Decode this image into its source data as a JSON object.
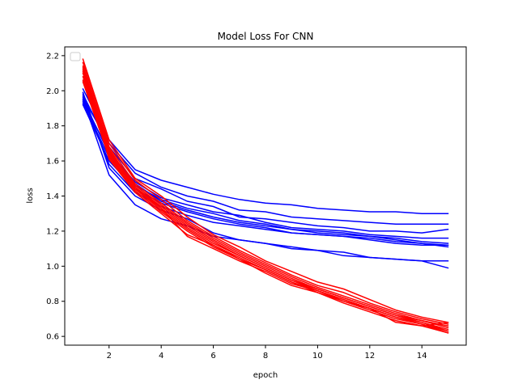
{
  "chart_data": {
    "type": "line",
    "title": "Model Loss For CNN",
    "xlabel": "epoch",
    "ylabel": "loss",
    "xlim": [
      0.3,
      15.7
    ],
    "ylim": [
      0.55,
      2.25
    ],
    "xticks": [
      2,
      4,
      6,
      8,
      10,
      12,
      14
    ],
    "yticks": [
      0.6,
      0.8,
      1.0,
      1.2,
      1.4,
      1.6,
      1.8,
      2.0,
      2.2
    ],
    "ytick_labels": [
      "0.6",
      "0.8",
      "1.0",
      "1.2",
      "1.4",
      "1.6",
      "1.8",
      "2.0",
      "2.2"
    ],
    "grid": false,
    "legend": {
      "placement": "top-left",
      "entries": []
    },
    "x": [
      1,
      2,
      3,
      4,
      5,
      6,
      7,
      8,
      9,
      10,
      11,
      12,
      13,
      14,
      15
    ],
    "series_groups": [
      {
        "color": "#0000ff",
        "series": [
          {
            "values": [
              2.01,
              1.72,
              1.55,
              1.49,
              1.45,
              1.41,
              1.38,
              1.36,
              1.35,
              1.33,
              1.32,
              1.31,
              1.31,
              1.3,
              1.3
            ]
          },
          {
            "values": [
              1.96,
              1.7,
              1.53,
              1.45,
              1.4,
              1.37,
              1.32,
              1.31,
              1.28,
              1.27,
              1.26,
              1.25,
              1.24,
              1.24,
              1.24
            ]
          },
          {
            "values": [
              1.98,
              1.68,
              1.5,
              1.44,
              1.37,
              1.34,
              1.28,
              1.27,
              1.25,
              1.23,
              1.22,
              1.2,
              1.2,
              1.19,
              1.21
            ]
          },
          {
            "values": [
              1.94,
              1.65,
              1.48,
              1.39,
              1.35,
              1.31,
              1.29,
              1.25,
              1.22,
              1.21,
              1.2,
              1.18,
              1.17,
              1.16,
              1.16
            ]
          },
          {
            "values": [
              1.93,
              1.62,
              1.46,
              1.38,
              1.33,
              1.3,
              1.26,
              1.24,
              1.21,
              1.2,
              1.19,
              1.17,
              1.16,
              1.14,
              1.13
            ]
          },
          {
            "values": [
              1.95,
              1.64,
              1.47,
              1.37,
              1.32,
              1.28,
              1.25,
              1.23,
              1.21,
              1.19,
              1.18,
              1.17,
              1.15,
              1.13,
              1.12
            ]
          },
          {
            "values": [
              1.92,
              1.6,
              1.44,
              1.36,
              1.31,
              1.27,
              1.24,
              1.22,
              1.19,
              1.18,
              1.17,
              1.16,
              1.14,
              1.13,
              1.11
            ]
          },
          {
            "values": [
              1.97,
              1.58,
              1.42,
              1.34,
              1.29,
              1.25,
              1.23,
              1.21,
              1.19,
              1.18,
              1.17,
              1.15,
              1.13,
              1.12,
              1.12
            ]
          },
          {
            "values": [
              1.99,
              1.56,
              1.4,
              1.32,
              1.27,
              1.19,
              1.15,
              1.13,
              1.1,
              1.09,
              1.08,
              1.05,
              1.04,
              1.03,
              1.03
            ]
          },
          {
            "values": [
              1.95,
              1.52,
              1.35,
              1.27,
              1.23,
              1.17,
              1.15,
              1.13,
              1.11,
              1.09,
              1.06,
              1.05,
              1.04,
              1.03,
              0.99
            ]
          }
        ]
      },
      {
        "color": "#ff0000",
        "series": [
          {
            "values": [
              2.18,
              1.72,
              1.5,
              1.4,
              1.28,
              1.18,
              1.11,
              1.03,
              0.97,
              0.91,
              0.87,
              0.81,
              0.75,
              0.71,
              0.68
            ]
          },
          {
            "values": [
              2.16,
              1.7,
              1.49,
              1.38,
              1.26,
              1.17,
              1.09,
              1.02,
              0.95,
              0.89,
              0.85,
              0.79,
              0.74,
              0.7,
              0.67
            ]
          },
          {
            "values": [
              2.14,
              1.68,
              1.47,
              1.36,
              1.25,
              1.16,
              1.08,
              1.01,
              0.94,
              0.88,
              0.83,
              0.78,
              0.73,
              0.69,
              0.66
            ]
          },
          {
            "values": [
              2.12,
              1.66,
              1.46,
              1.35,
              1.24,
              1.15,
              1.07,
              1.0,
              0.93,
              0.87,
              0.82,
              0.77,
              0.72,
              0.69,
              0.65
            ]
          },
          {
            "values": [
              2.1,
              1.65,
              1.45,
              1.34,
              1.23,
              1.14,
              1.06,
              0.99,
              0.92,
              0.87,
              0.82,
              0.77,
              0.72,
              0.68,
              0.64
            ]
          },
          {
            "values": [
              2.08,
              1.64,
              1.44,
              1.33,
              1.22,
              1.13,
              1.06,
              0.99,
              0.92,
              0.86,
              0.81,
              0.76,
              0.71,
              0.68,
              0.63
            ]
          },
          {
            "values": [
              2.06,
              1.63,
              1.44,
              1.32,
              1.21,
              1.12,
              1.05,
              0.98,
              0.91,
              0.86,
              0.81,
              0.76,
              0.71,
              0.67,
              0.63
            ]
          },
          {
            "values": [
              2.05,
              1.62,
              1.43,
              1.31,
              1.2,
              1.11,
              1.04,
              0.98,
              0.91,
              0.85,
              0.8,
              0.75,
              0.7,
              0.67,
              0.62
            ]
          },
          {
            "values": [
              2.13,
              1.67,
              1.45,
              1.33,
              1.17,
              1.1,
              1.03,
              0.97,
              0.9,
              0.86,
              0.8,
              0.76,
              0.68,
              0.66,
              0.68
            ]
          },
          {
            "values": [
              2.11,
              1.61,
              1.42,
              1.3,
              1.18,
              1.12,
              1.04,
              0.96,
              0.89,
              0.85,
              0.79,
              0.74,
              0.69,
              0.66,
              0.62
            ]
          }
        ]
      }
    ]
  }
}
